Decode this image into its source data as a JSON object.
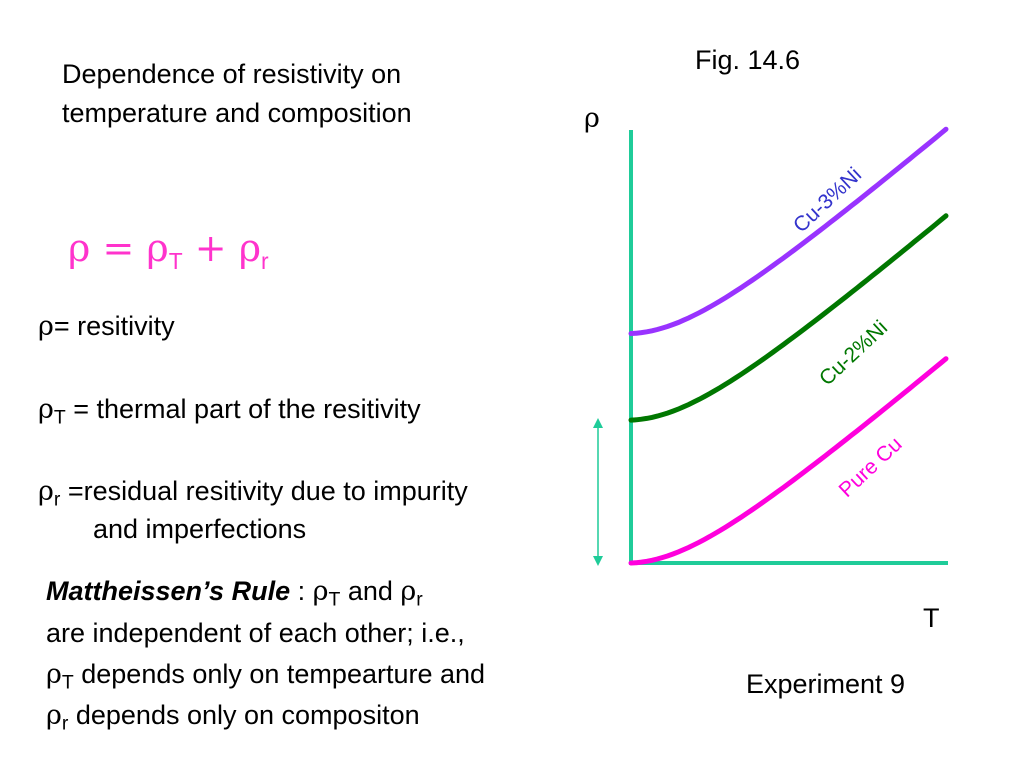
{
  "title": {
    "line1": "Dependence of resistivity on",
    "line2": "temperature and composition"
  },
  "figure_label": "Fig. 14.6",
  "formula": {
    "rho": "ρ",
    "equals": "=",
    "rho_T": "ρ",
    "sub_T": "T",
    "plus": "+",
    "rho_r": "ρ",
    "sub_r": "r"
  },
  "definitions": {
    "rho": {
      "symbol": "ρ",
      "text": "= resitivity"
    },
    "rho_T": {
      "symbol": "ρ",
      "subscript": "T",
      "text": " = thermal part of the resitivity"
    },
    "rho_r": {
      "symbol": "ρ",
      "subscript": "r",
      "text": " =residual resitivity due to impurity",
      "continuation": "and imperfections"
    }
  },
  "rule": {
    "name": "Mattheissen’s Rule",
    "line1_a": " : ",
    "line1_b": " and ",
    "line2": "are independent of each other; i.e.,",
    "line3_text": " depends only on tempearture and",
    "line4_text": " depends only on compositon",
    "symbol": "ρ",
    "sub_T": "T",
    "sub_r": "r"
  },
  "experiment_label": "Experiment 9",
  "chart_data": {
    "type": "line",
    "ylabel": "ρ",
    "xlabel": "T",
    "axis_color": "#1fcc99",
    "series": [
      {
        "name": "Cu-3%Ni",
        "color": "#9933ff",
        "label_color": "#3333cc",
        "residual": 0.53,
        "slope": 0.47
      },
      {
        "name": "Cu-2%Ni",
        "color": "#007700",
        "label_color": "#007700",
        "residual": 0.33,
        "slope": 0.47
      },
      {
        "name": "Pure Cu",
        "color": "#ff00dd",
        "label_color": "#ff00dd",
        "residual": 0.0,
        "slope": 0.47
      }
    ],
    "annotation": "double-headed arrow indicating residual resistivity",
    "annotation_color": "#1fcc99"
  }
}
